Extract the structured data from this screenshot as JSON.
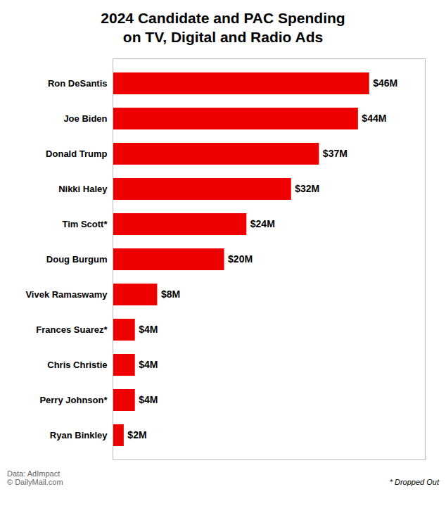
{
  "chart_data": {
    "type": "bar",
    "title": "2024 Candidate and PAC Spending\non TV, Digital and Radio Ads",
    "orientation": "horizontal",
    "categories": [
      "Ron DeSantis",
      "Joe Biden",
      "Donald Trump",
      "Nikki Haley",
      "Tim Scott*",
      "Doug Burgum",
      "Vivek Ramaswamy",
      "Frances Suarez*",
      "Chris Christie",
      "Perry Johnson*",
      "Ryan Binkley"
    ],
    "values": [
      46,
      44,
      37,
      32,
      24,
      20,
      8,
      4,
      4,
      4,
      2
    ],
    "value_labels": [
      "$46M",
      "$44M",
      "$37M",
      "$32M",
      "$24M",
      "$20M",
      "$8M",
      "$4M",
      "$4M",
      "$4M",
      "$2M"
    ],
    "data_labels": true,
    "color": "#ee0000",
    "xlim": [
      0,
      56
    ],
    "tick_labels": "y",
    "grid": false,
    "annotations": [
      "Data: AdImpact\n© DailyMail.com",
      "* Dropped Out"
    ]
  }
}
